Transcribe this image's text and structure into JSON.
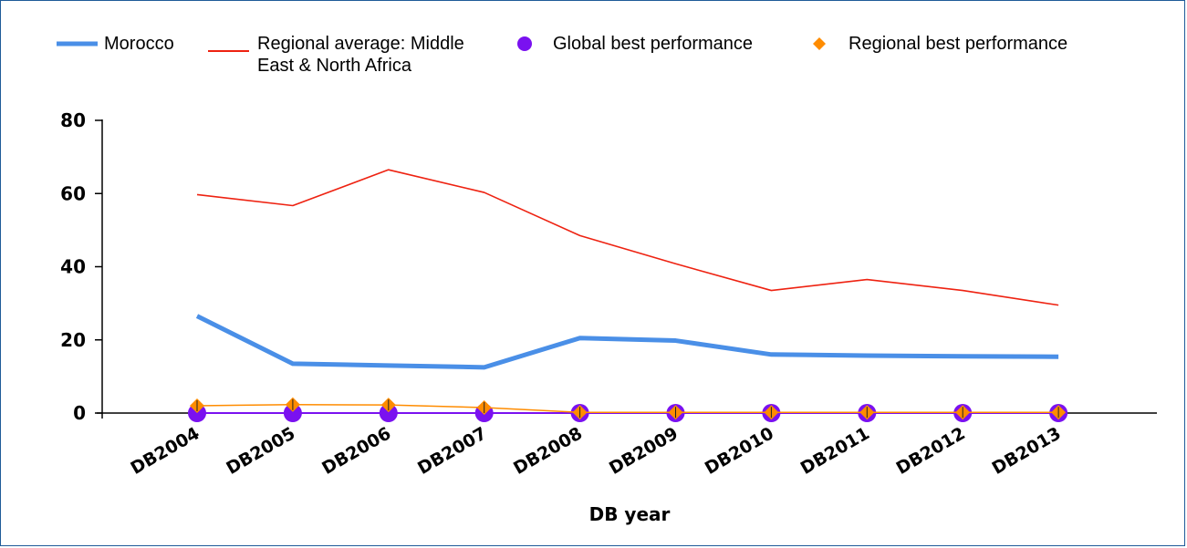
{
  "chart_data": {
    "type": "line",
    "title": "",
    "xlabel": "DB year",
    "ylabel": "",
    "ylim": [
      0,
      80
    ],
    "yticks": [
      0,
      20,
      40,
      60,
      80
    ],
    "grid": false,
    "legend_position": "top",
    "categories": [
      "DB2004",
      "DB2005",
      "DB2006",
      "DB2007",
      "DB2008",
      "DB2009",
      "DB2010",
      "DB2011",
      "DB2012",
      "DB2013"
    ],
    "series": [
      {
        "name": "Morocco",
        "style": "line",
        "color": "#4a8fe7",
        "values": [
          26.5,
          13.5,
          13.0,
          12.5,
          20.5,
          19.8,
          16.0,
          15.7,
          15.5,
          15.4
        ]
      },
      {
        "name": "Regional average: Middle East & North Africa",
        "style": "line",
        "color": "#ee2211",
        "values": [
          59.7,
          56.7,
          66.5,
          60.3,
          48.5,
          40.8,
          33.5,
          36.5,
          33.5,
          29.5
        ]
      },
      {
        "name": "Global best performance",
        "style": "marker-circle",
        "color": "#7a11f0",
        "values": [
          0,
          0,
          0,
          0,
          0,
          0,
          0,
          0,
          0,
          0
        ]
      },
      {
        "name": "Regional best performance",
        "style": "marker-diamond",
        "color": "#ff8c00",
        "values": [
          2.0,
          2.3,
          2.2,
          1.5,
          0.2,
          0.2,
          0.2,
          0.2,
          0.2,
          0.2
        ]
      }
    ]
  }
}
